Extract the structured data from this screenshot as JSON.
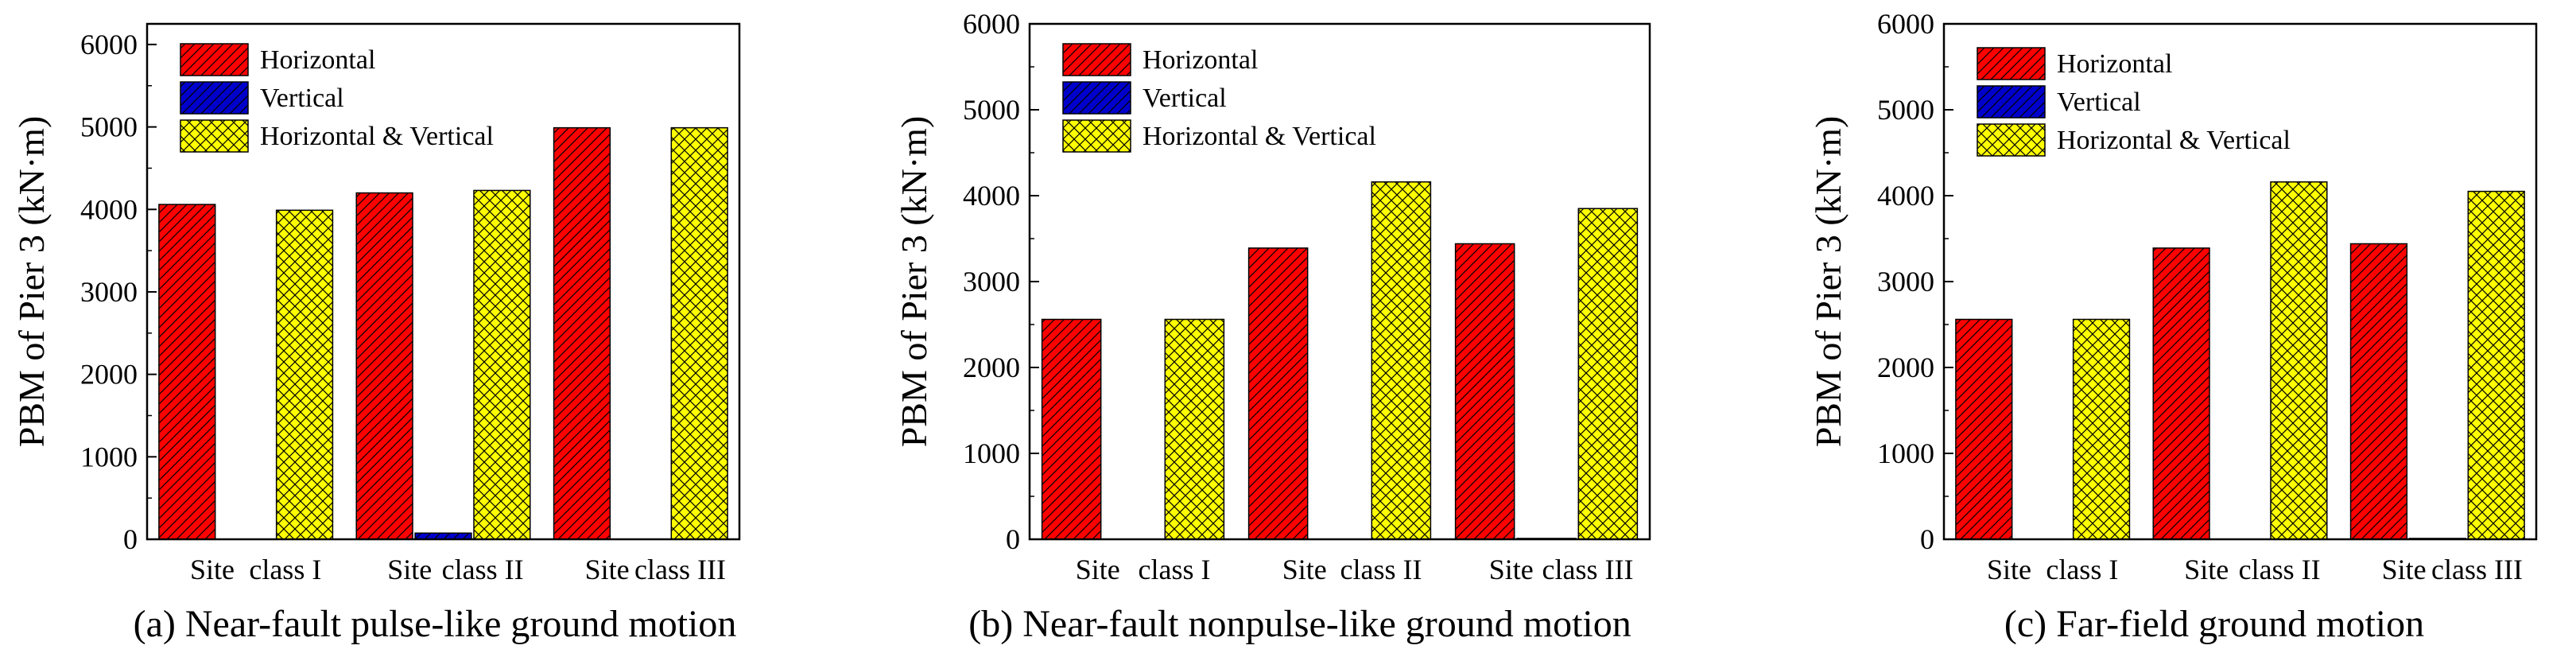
{
  "figure": {
    "colors": {
      "horizontal": "#ff0000",
      "vertical": "#0000cc",
      "horizontal_vertical": "#ffff00",
      "hatch": "#000000"
    },
    "legend_entries": [
      "Horizontal",
      "Vertical",
      "Horizontal & Vertical"
    ]
  },
  "chart_data": [
    {
      "type": "bar",
      "caption": "(a) Near-fault pulse-like ground motion",
      "ylabel": "PBM of Pier 3 (kN·m)",
      "ylim": [
        0,
        6250
      ],
      "yticks": [
        0,
        1000,
        2000,
        3000,
        4000,
        5000,
        6000
      ],
      "ytick_labels": [
        "0",
        "1000",
        "2000",
        "3000",
        "4000",
        "5000",
        "6000"
      ],
      "categories": [
        "Site  class I",
        "Site  class II",
        "Site  class III"
      ],
      "x_labels": [
        "Site",
        "class I",
        "Site",
        "class II",
        "Site",
        "class III"
      ],
      "legend": "top-left",
      "series": [
        {
          "name": "Horizontal",
          "values": [
            4060,
            4200,
            4990
          ]
        },
        {
          "name": "Vertical",
          "values": [
            0,
            75,
            0
          ]
        },
        {
          "name": "Horizontal & Vertical",
          "values": [
            3990,
            4230,
            4990
          ]
        }
      ]
    },
    {
      "type": "bar",
      "caption": "(b) Near-fault nonpulse-like ground motion",
      "ylabel": "PBM of Pier 3 (kN·m)",
      "ylim": [
        0,
        6000
      ],
      "yticks": [
        0,
        1000,
        2000,
        3000,
        4000,
        5000,
        6000
      ],
      "ytick_labels": [
        "0",
        "1000",
        "2000",
        "3000",
        "4000",
        "5000",
        "6000"
      ],
      "categories": [
        "Site  class I",
        "Site  class II",
        "Site  class III"
      ],
      "x_labels": [
        "Site",
        "class I",
        "Site",
        "class II",
        "Site",
        "class III"
      ],
      "legend": "top-left",
      "series": [
        {
          "name": "Horizontal",
          "values": [
            2560,
            3390,
            3440
          ]
        },
        {
          "name": "Vertical",
          "values": [
            0,
            0,
            10
          ]
        },
        {
          "name": "Horizontal & Vertical",
          "values": [
            2560,
            4160,
            3850
          ]
        }
      ]
    },
    {
      "type": "bar",
      "caption": "(c)  Far-field ground motion",
      "ylabel": "PBM of Pier 3 (kN·m)",
      "ylim": [
        0,
        6000
      ],
      "yticks": [
        0,
        1000,
        2000,
        3000,
        4000,
        5000,
        6000
      ],
      "ytick_labels": [
        "0",
        "1000",
        "2000",
        "3000",
        "4000",
        "5000",
        "6000"
      ],
      "categories": [
        "Site  class I",
        "Site  class II",
        "Site  class III"
      ],
      "x_labels": [
        "Site",
        "class I",
        "Site",
        "class II",
        "Site",
        "class III"
      ],
      "legend": "top-left",
      "series": [
        {
          "name": "Horizontal",
          "values": [
            2560,
            3390,
            3440
          ]
        },
        {
          "name": "Vertical",
          "values": [
            0,
            0,
            10
          ]
        },
        {
          "name": "Horizontal & Vertical",
          "values": [
            2560,
            4160,
            4050
          ]
        }
      ]
    }
  ]
}
